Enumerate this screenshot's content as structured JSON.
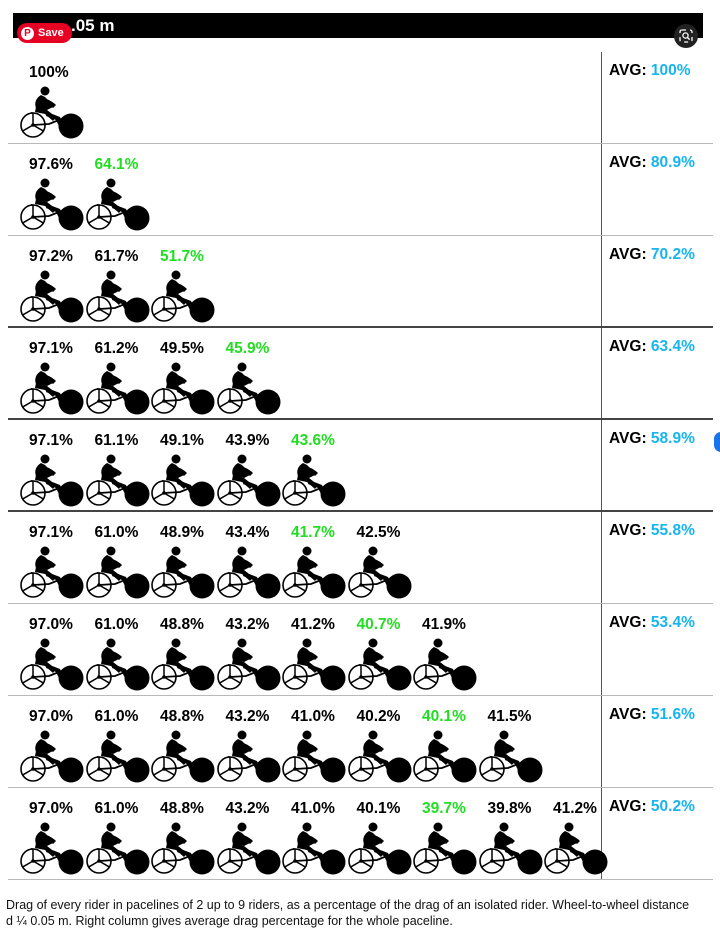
{
  "header": {
    "title": "d ¼ 0.05 m",
    "visible_title": ".05 m"
  },
  "pin_button": {
    "label": "Save",
    "logo": "pinterest-logo"
  },
  "lens_button": {
    "icon": "visual-search-icon"
  },
  "rows": [
    {
      "values": [
        "100%"
      ],
      "min_index": -1,
      "avg_label": "AVG:",
      "avg_value": "100%"
    },
    {
      "values": [
        "97.6%",
        "64.1%"
      ],
      "min_index": 1,
      "avg_label": "AVG:",
      "avg_value": "80.9%"
    },
    {
      "values": [
        "97.2%",
        "61.7%",
        "51.7%"
      ],
      "min_index": 2,
      "avg_label": "AVG:",
      "avg_value": "70.2%"
    },
    {
      "values": [
        "97.1%",
        "61.2%",
        "49.5%",
        "45.9%"
      ],
      "min_index": 3,
      "avg_label": "AVG:",
      "avg_value": "63.4%"
    },
    {
      "values": [
        "97.1%",
        "61.1%",
        "49.1%",
        "43.9%",
        "43.6%"
      ],
      "min_index": 4,
      "avg_label": "AVG:",
      "avg_value": "58.9%"
    },
    {
      "values": [
        "97.1%",
        "61.0%",
        "48.9%",
        "43.4%",
        "41.7%",
        "42.5%"
      ],
      "min_index": 4,
      "avg_label": "AVG:",
      "avg_value": "55.8%"
    },
    {
      "values": [
        "97.0%",
        "61.0%",
        "48.8%",
        "43.2%",
        "41.2%",
        "40.7%",
        "41.9%"
      ],
      "min_index": 5,
      "avg_label": "AVG:",
      "avg_value": "53.4%"
    },
    {
      "values": [
        "97.0%",
        "61.0%",
        "48.8%",
        "43.2%",
        "41.0%",
        "40.2%",
        "40.1%",
        "41.5%"
      ],
      "min_index": 6,
      "avg_label": "AVG:",
      "avg_value": "51.6%"
    },
    {
      "values": [
        "97.0%",
        "61.0%",
        "48.8%",
        "43.2%",
        "41.0%",
        "40.1%",
        "39.7%",
        "39.8%",
        "41.2%"
      ],
      "min_index": 6,
      "avg_label": "AVG:",
      "avg_value": "50.2%"
    }
  ],
  "colors": {
    "min_value": "#22dd22",
    "avg_value": "#18b4ee",
    "header_bg": "#000000",
    "save_button": "#e60023"
  },
  "rider_icon": "cyclist-icon",
  "caption": "Drag of every rider in pacelines of 2 up to 9 riders, as a percentage of the drag of an isolated rider. Wheel-to-wheel distance d ¼ 0.05 m. Right column gives average drag percentage for the whole paceline."
}
